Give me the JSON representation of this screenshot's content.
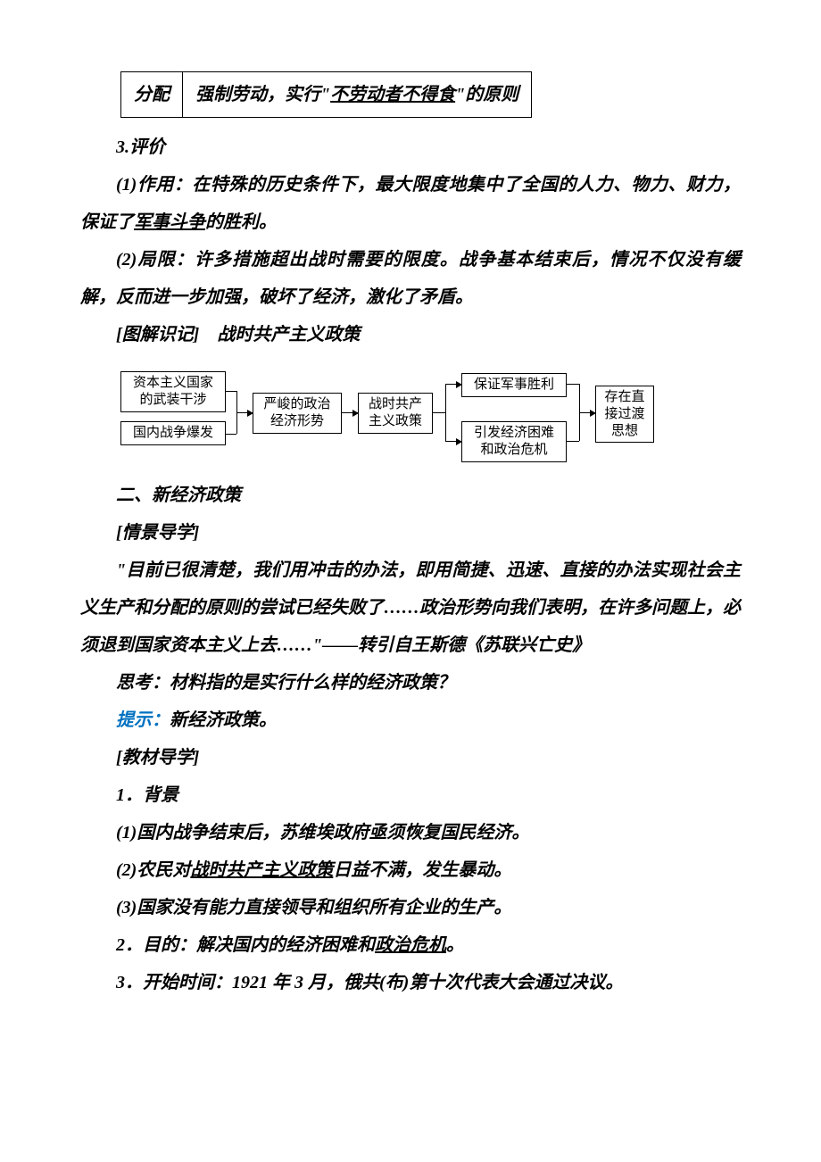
{
  "table_top": {
    "c1": "分配",
    "c2_a": "强制劳动，实行\"",
    "c2_u": "不劳动者不得食",
    "c2_b": "\"的原则"
  },
  "h_3": "3.评价",
  "p_eval_1a": "(1)作用：在特殊的历史条件下，最大限度地集中了全国的人力、物力、财力，保证了",
  "p_eval_1u": "军事斗争",
  "p_eval_1b": "的胜利。",
  "p_eval_2": "(2)局限：许多措施超出战时需要的限度。战争基本结束后，情况不仅没有缓解，反而进一步加强，破坏了经济，激化了矛盾。",
  "h_diagram": "[图解识记]　战时共产主义政策",
  "diagram": {
    "b1": "资本主义国家\n的武装干涉",
    "b2": "国内战争爆发",
    "b3": "严峻的政治\n经济形势",
    "b4": "战时共产\n主义政策",
    "b5": "保证军事胜利",
    "b6": "引发经济困难\n和政治危机",
    "b7": "存在直\n接过渡\n思想"
  },
  "h_sec2": "二、新经济政策",
  "h_scene": "[情景导学]",
  "p_quote": "\"目前已很清楚，我们用冲击的办法，即用简捷、迅速、直接的办法实现社会主义生产和分配的原则的尝试已经失败了……政治形势向我们表明，在许多问题上，必须退到国家资本主义上去……\"——转引自王斯德《苏联兴亡史》",
  "p_think_label": "思考：",
  "p_think_body": "材料指的是实行什么样的经济政策？",
  "p_hint_label": "提示：",
  "p_hint_body": "新经济政策。",
  "h_text": "[教材导学]",
  "h_bg": "1．背景",
  "p_bg1": "(1)国内战争结束后，苏维埃政府亟须恢复国民经济。",
  "p_bg2a": "(2)农民对",
  "p_bg2u": "战时共产主义政策",
  "p_bg2b": "日益不满，发生暴动。",
  "p_bg3": "(3)国家没有能力直接领导和组织所有企业的生产。",
  "p_aim_a": "2．目的：解决国内的经济困难和",
  "p_aim_u": "政治危机",
  "p_aim_b": "。",
  "p_time": "3．开始时间：1921 年 3 月，俄共(布)第十次代表大会通过决议。"
}
